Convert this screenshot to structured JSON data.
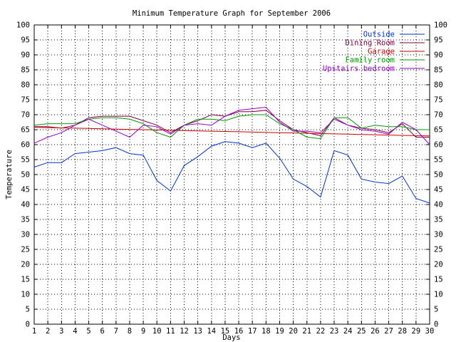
{
  "chart_data": {
    "type": "line",
    "title": "Minimum Temperature Graph for September 2006",
    "xlabel": "Days",
    "ylabel": "Temperature",
    "xlim": [
      1,
      30
    ],
    "ylim": [
      0,
      100
    ],
    "x_ticks": [
      1,
      2,
      3,
      4,
      5,
      6,
      7,
      8,
      9,
      10,
      11,
      12,
      13,
      14,
      15,
      16,
      17,
      18,
      19,
      20,
      21,
      22,
      23,
      24,
      25,
      26,
      27,
      28,
      29,
      30
    ],
    "y_ticks": [
      0,
      5,
      10,
      15,
      20,
      25,
      30,
      35,
      40,
      45,
      50,
      55,
      60,
      65,
      70,
      75,
      80,
      85,
      90,
      95,
      100
    ],
    "grid": true,
    "legend_position": "top-right",
    "x": [
      1,
      2,
      3,
      4,
      5,
      6,
      7,
      8,
      9,
      10,
      11,
      12,
      13,
      14,
      15,
      16,
      17,
      18,
      19,
      20,
      21,
      22,
      23,
      24,
      25,
      26,
      27,
      28,
      29,
      30
    ],
    "series": [
      {
        "name": "Outside",
        "color": "#0033cc",
        "values": [
          52.5,
          54,
          54,
          57,
          57.5,
          58,
          59,
          57,
          56.5,
          48,
          44.5,
          53,
          56,
          59.5,
          61,
          60.5,
          59,
          60.5,
          55.5,
          48.5,
          46,
          42.5,
          58,
          56.5,
          48.5,
          47.5,
          47,
          49.5,
          42,
          40.5
        ]
      },
      {
        "name": "Dining Room",
        "color": "#800040",
        "values": [
          66,
          66,
          65.5,
          66.5,
          69,
          69.5,
          69.5,
          69.5,
          68,
          66.5,
          64,
          66.5,
          68,
          70,
          69.5,
          71,
          71,
          71.5,
          68,
          65,
          64,
          63,
          69,
          66.5,
          65.5,
          65,
          64,
          67,
          62.5,
          62.5
        ]
      },
      {
        "name": "Garage",
        "color": "#cc0000",
        "values": [
          65.8,
          65.7,
          65.6,
          65.5,
          65.4,
          65.3,
          65.2,
          65.1,
          65,
          64.9,
          64.8,
          64.7,
          64.6,
          64.5,
          64.4,
          64.3,
          64.2,
          64.1,
          64,
          63.9,
          63.8,
          63.7,
          63.6,
          63.5,
          63.4,
          63.3,
          63.2,
          63.1,
          63,
          62.9
        ]
      },
      {
        "name": "Family room",
        "color": "#009900",
        "values": [
          66.5,
          67,
          67,
          67,
          68.5,
          69,
          69,
          68.5,
          67,
          64,
          62.5,
          66.5,
          68.5,
          68.5,
          68,
          69.5,
          70,
          70,
          67,
          65,
          62.5,
          62,
          69,
          69,
          65.5,
          66.5,
          66,
          66,
          65,
          65
        ]
      },
      {
        "name": "Upstairs bedroom",
        "color": "#9900cc",
        "values": [
          60.5,
          62.5,
          64,
          66.5,
          68.5,
          66.5,
          64.5,
          62.5,
          66.5,
          66,
          63.5,
          66.5,
          67,
          66.5,
          69.5,
          71.5,
          72,
          72.5,
          67.5,
          64.5,
          64.5,
          64,
          68.5,
          66.5,
          65,
          64.5,
          63.5,
          67.5,
          65,
          60
        ]
      }
    ]
  }
}
